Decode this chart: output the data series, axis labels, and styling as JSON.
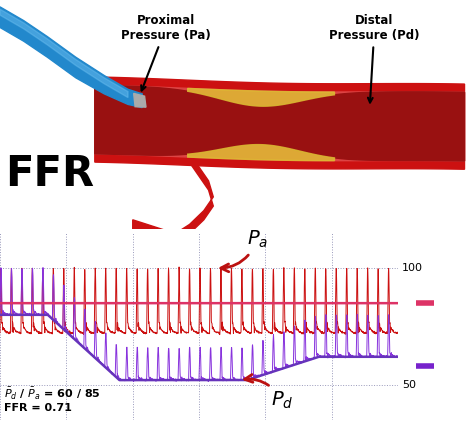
{
  "bg_color": "#ffffff",
  "plot_bg_color": "#c8d4e0",
  "grid_color": "#9999bb",
  "Pa_color": "#cc1111",
  "Pd_color": "#8833dd",
  "Pa_mean_color": "#dd3366",
  "Pd_mean_color": "#6633bb",
  "ylim": [
    35,
    115
  ],
  "ytick_100": 100,
  "ytick_50": 50,
  "n_beats": 38,
  "Pa_systole": 100,
  "Pa_diastole": 72,
  "Pa_mean": 85,
  "text_Pd_Pa": "$\\bar{P}_d$ / $\\bar{P}_a$ = 60 / 85",
  "text_FFR": "FFR = 0.71",
  "label_Pa": "$P_a$",
  "label_Pd": "$P_d$",
  "label_proximal": "Proximal\nPressure (Pa)",
  "label_distal": "Distal\nPressure (Pd)",
  "label_FFR": "FFR",
  "annotation_color": "#bb1111",
  "legend_Pa_color": "#dd3366",
  "legend_Pd_color": "#7722cc"
}
